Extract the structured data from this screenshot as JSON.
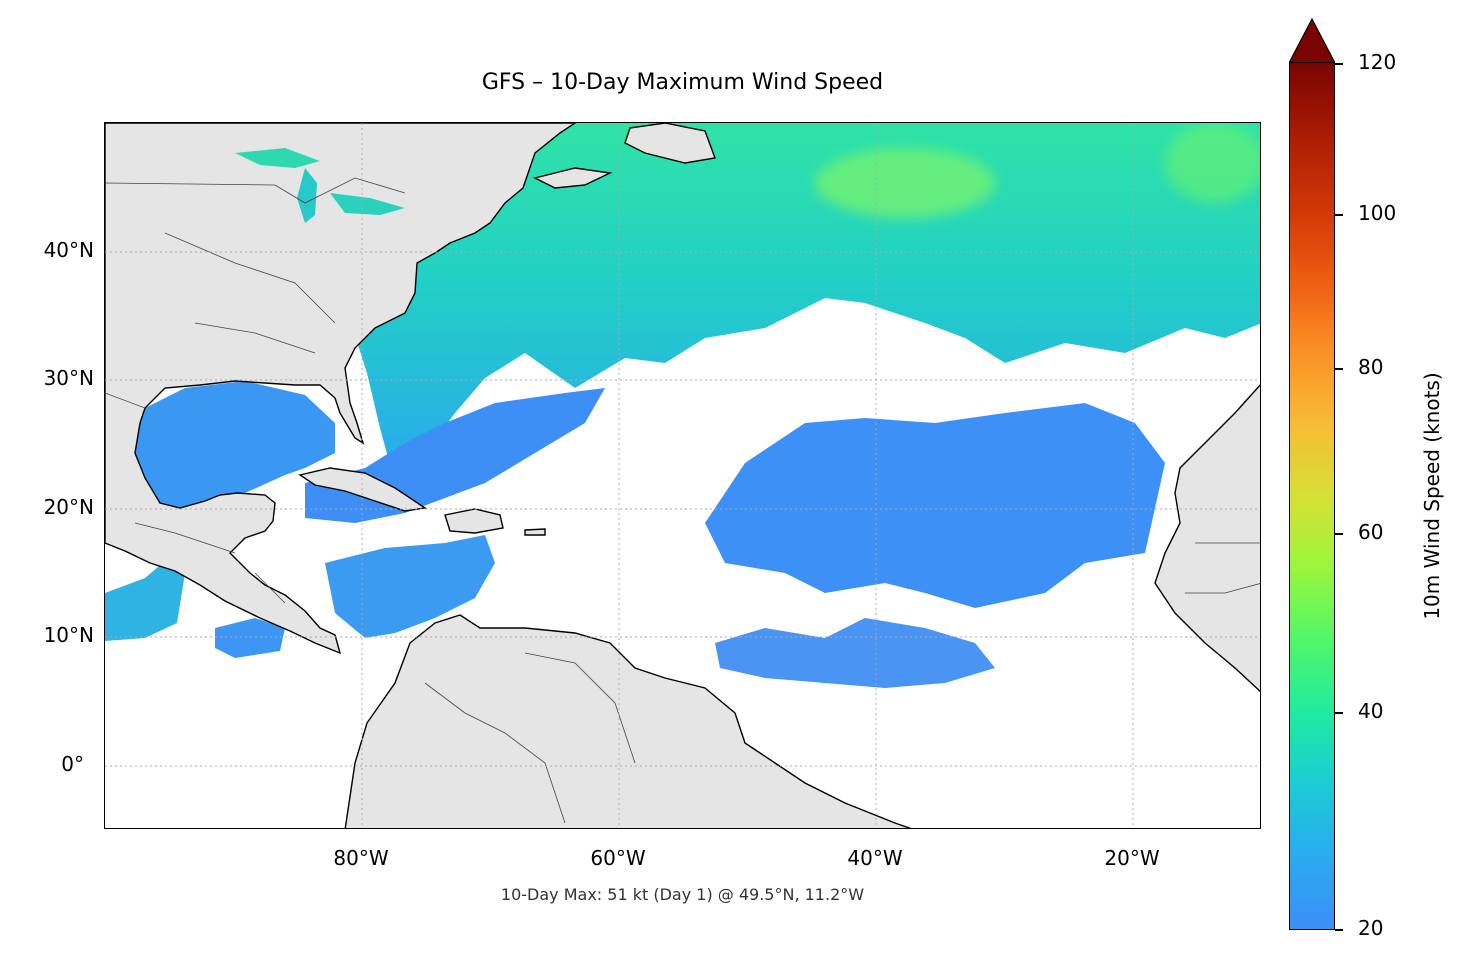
{
  "title": "GFS – 10-Day Maximum Wind Speed",
  "footnote": "10-Day Max: 51 kt (Day 1) @ 49.5°N, 11.2°W",
  "map": {
    "lat_ticks": [
      "40°N",
      "30°N",
      "20°N",
      "10°N",
      "0°"
    ],
    "lon_ticks": [
      "80°W",
      "60°W",
      "40°W",
      "20°W"
    ],
    "extent": {
      "lon_min": -100,
      "lon_max": -10,
      "lat_min": -5,
      "lat_max": 50
    },
    "colors": {
      "land": "#e5e5e5",
      "ocean": "#ffffff",
      "wind_low": "#3e8ef7",
      "wind_mid": "#1ccdd2",
      "wind_high": "#4ef66b"
    }
  },
  "colorbar": {
    "label": "10m Wind Speed (knots)",
    "ticks": [
      "120",
      "100",
      "80",
      "60",
      "40",
      "20"
    ],
    "min": 20,
    "max": 120,
    "extend": "max"
  }
}
